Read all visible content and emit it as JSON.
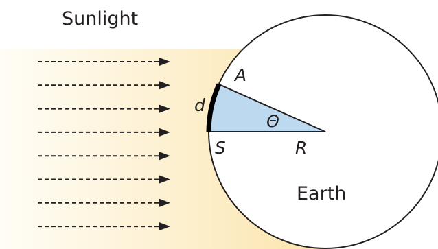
{
  "labels": {
    "sunlight": "Sunlight",
    "earth": "Earth",
    "point_a": "A",
    "point_s": "S",
    "radius": "R",
    "arc_length": "d",
    "angle": "Θ"
  },
  "colors": {
    "sunlight_band": "#fce7b5",
    "sector_fill": "#bcd9ef",
    "outline": "#231f20",
    "arc_highlight": "#000000"
  },
  "sunlight_arrow_count": 8
}
